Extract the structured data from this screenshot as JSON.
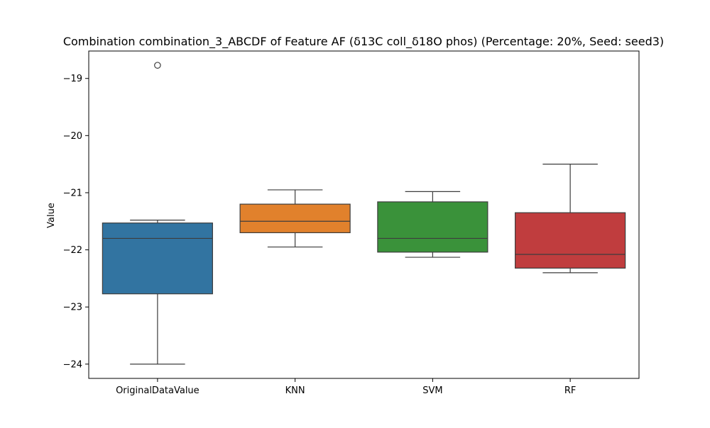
{
  "chart_data": {
    "type": "box",
    "title": "Combination combination_3_ABCDF of Feature AF (δ13C coll_δ18O phos) (Percentage: 20%, Seed: seed3)",
    "xlabel": "",
    "ylabel": "Value",
    "ylim": [
      -24.25,
      -18.52
    ],
    "yticks": [
      -24,
      -23,
      -22,
      -21,
      -20,
      -19
    ],
    "ytick_labels": [
      "−24",
      "−23",
      "−22",
      "−21",
      "−20",
      "−19"
    ],
    "grid": false,
    "legend": "none",
    "categories": [
      "OriginalDataValue",
      "KNN",
      "SVM",
      "RF"
    ],
    "boxes": [
      {
        "category": "OriginalDataValue",
        "color": "#3274a1",
        "whisker_low": -24.0,
        "q1": -22.77,
        "median": -21.8,
        "q3": -21.53,
        "whisker_high": -21.48,
        "outliers": [
          -18.77
        ]
      },
      {
        "category": "KNN",
        "color": "#e1812c",
        "whisker_low": -21.95,
        "q1": -21.7,
        "median": -21.5,
        "q3": -21.2,
        "whisker_high": -20.95
      },
      {
        "category": "SVM",
        "color": "#3a923a",
        "whisker_low": -22.13,
        "q1": -22.04,
        "median": -21.8,
        "q3": -21.16,
        "whisker_high": -20.98
      },
      {
        "category": "RF",
        "color": "#c03d3e",
        "whisker_low": -22.4,
        "q1": -22.32,
        "median": -22.08,
        "q3": -21.35,
        "whisker_high": -20.5
      }
    ]
  }
}
